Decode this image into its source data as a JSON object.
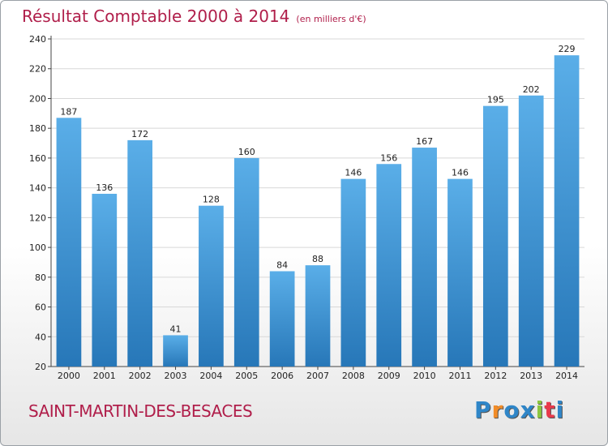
{
  "header": {
    "title": "Résultat Comptable 2000 à 2014",
    "unit": "(en milliers d'€)"
  },
  "footer": {
    "commune": "SAINT-MARTIN-DES-BESACES",
    "logo": {
      "letters": [
        "P",
        "r",
        "o",
        "x",
        "i",
        "t",
        "i"
      ],
      "colors": [
        "#2f86c8",
        "#f28c28",
        "#2f86c8",
        "#2f86c8",
        "#8cc63f",
        "#e8394b",
        "#2f86c8"
      ]
    }
  },
  "chart_data": {
    "type": "bar",
    "categories": [
      "2000",
      "2001",
      "2002",
      "2003",
      "2004",
      "2005",
      "2006",
      "2007",
      "2008",
      "2009",
      "2010",
      "2011",
      "2012",
      "2013",
      "2014"
    ],
    "values": [
      187,
      136,
      172,
      41,
      128,
      160,
      84,
      88,
      146,
      156,
      167,
      146,
      195,
      202,
      229
    ],
    "title": "Résultat Comptable 2000 à 2014",
    "xlabel": "",
    "ylabel": "",
    "ylim": [
      20,
      240
    ],
    "yticks": [
      20,
      40,
      60,
      80,
      100,
      120,
      140,
      160,
      180,
      200,
      220,
      240
    ],
    "grid": true,
    "bar_color_top": "#5aaee8",
    "bar_color_bottom": "#2777b8",
    "grid_color": "#d8d8d8"
  }
}
